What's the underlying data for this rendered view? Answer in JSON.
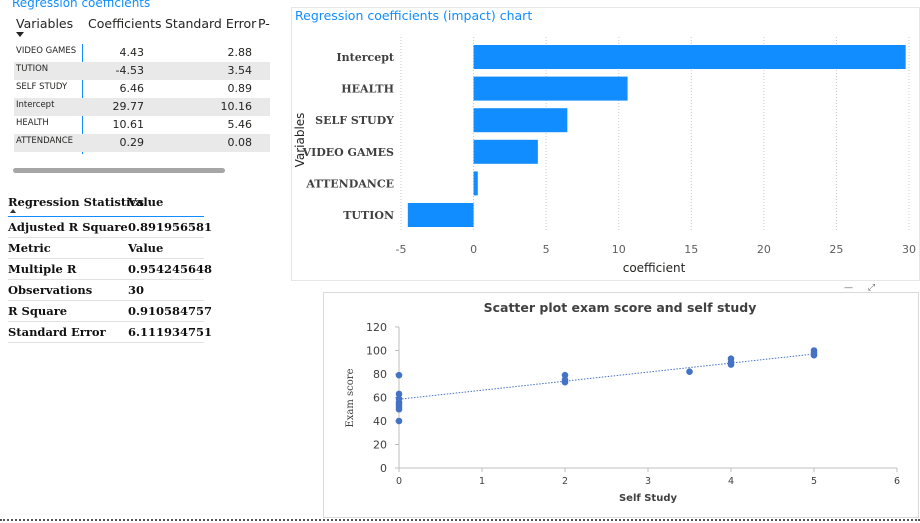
{
  "coefficients_table": {
    "title": "Regression coefficients",
    "headers": {
      "variables": "Variables",
      "coefficients": "Coefficients",
      "standard_error": "Standard Error",
      "p": "P-"
    },
    "rows": [
      {
        "variable": "VIDEO GAMES",
        "coefficient": "4.43",
        "standard_error": "2.88"
      },
      {
        "variable": "TUTION",
        "coefficient": "-4.53",
        "standard_error": "3.54"
      },
      {
        "variable": "SELF STUDY",
        "coefficient": "6.46",
        "standard_error": "0.89"
      },
      {
        "variable": "Intercept",
        "coefficient": "29.77",
        "standard_error": "10.16"
      },
      {
        "variable": "HEALTH",
        "coefficient": "10.61",
        "standard_error": "5.46"
      },
      {
        "variable": "ATTENDANCE",
        "coefficient": "0.29",
        "standard_error": "0.08"
      }
    ]
  },
  "regression_statistics": {
    "headers": {
      "name": "Regression Statistics",
      "value": "Value"
    },
    "rows": [
      {
        "name": "Adjusted R Square",
        "value": "0.891956581"
      },
      {
        "name": "Metric",
        "value": "Value"
      },
      {
        "name": "Multiple R",
        "value": "0.954245648"
      },
      {
        "name": "Observations",
        "value": "30"
      },
      {
        "name": "R Square",
        "value": "0.910584757"
      },
      {
        "name": "Standard Error",
        "value": "6.111934751"
      }
    ]
  },
  "chart_data": [
    {
      "type": "bar",
      "orientation": "horizontal",
      "title": "Regression coefficients (impact) chart",
      "xlabel": "coefficient",
      "ylabel": "Variables",
      "categories": [
        "Intercept",
        "HEALTH",
        "SELF STUDY",
        "VIDEO GAMES",
        "ATTENDANCE",
        "TUTION"
      ],
      "values": [
        29.77,
        10.61,
        6.46,
        4.43,
        0.29,
        -4.53
      ],
      "xlim": [
        -5,
        30
      ],
      "xticks": [
        "-5",
        "0",
        "5",
        "10",
        "15",
        "20",
        "25",
        "30"
      ],
      "grid": true,
      "color": "#118DFF"
    },
    {
      "type": "scatter",
      "title": "Scatter plot exam score and self study",
      "xlabel": "Self Study",
      "ylabel": "Exam score",
      "xlim": [
        0,
        6
      ],
      "ylim": [
        0,
        120
      ],
      "xticks": [
        "0",
        "1",
        "2",
        "3",
        "4",
        "5",
        "6"
      ],
      "yticks": [
        "0",
        "20",
        "40",
        "60",
        "80",
        "100",
        "120"
      ],
      "points": [
        {
          "x": 0,
          "y": 79
        },
        {
          "x": 0,
          "y": 63
        },
        {
          "x": 0,
          "y": 59
        },
        {
          "x": 0,
          "y": 56
        },
        {
          "x": 0,
          "y": 54
        },
        {
          "x": 0,
          "y": 52
        },
        {
          "x": 0,
          "y": 50
        },
        {
          "x": 0,
          "y": 40
        },
        {
          "x": 2,
          "y": 79
        },
        {
          "x": 2,
          "y": 75
        },
        {
          "x": 2,
          "y": 73
        },
        {
          "x": 3.5,
          "y": 82
        },
        {
          "x": 4,
          "y": 93
        },
        {
          "x": 4,
          "y": 90
        },
        {
          "x": 4,
          "y": 88
        },
        {
          "x": 5,
          "y": 100
        },
        {
          "x": 5,
          "y": 98
        },
        {
          "x": 5,
          "y": 96
        }
      ],
      "trendline": {
        "y_at_x0": 58.5,
        "y_at_x5": 97
      },
      "color": "#4472C4"
    }
  ]
}
